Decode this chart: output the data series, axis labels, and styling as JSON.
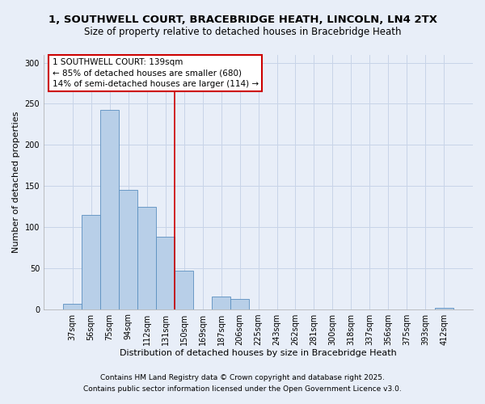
{
  "title_line1": "1, SOUTHWELL COURT, BRACEBRIDGE HEATH, LINCOLN, LN4 2TX",
  "title_line2": "Size of property relative to detached houses in Bracebridge Heath",
  "categories": [
    "37sqm",
    "56sqm",
    "75sqm",
    "94sqm",
    "112sqm",
    "131sqm",
    "150sqm",
    "169sqm",
    "187sqm",
    "206sqm",
    "225sqm",
    "243sqm",
    "262sqm",
    "281sqm",
    "300sqm",
    "318sqm",
    "337sqm",
    "356sqm",
    "375sqm",
    "393sqm",
    "412sqm"
  ],
  "values": [
    6,
    115,
    243,
    145,
    125,
    88,
    47,
    0,
    15,
    12,
    0,
    0,
    0,
    0,
    0,
    0,
    0,
    0,
    0,
    0,
    2
  ],
  "bar_color": "#b8cfe8",
  "bar_edge_color": "#5a8fc0",
  "annotation_box_text": "1 SOUTHWELL COURT: 139sqm\n← 85% of detached houses are smaller (680)\n14% of semi-detached houses are larger (114) →",
  "xlabel": "Distribution of detached houses by size in Bracebridge Heath",
  "ylabel": "Number of detached properties",
  "ylim": [
    0,
    310
  ],
  "yticks": [
    0,
    50,
    100,
    150,
    200,
    250,
    300
  ],
  "grid_color": "#c8d4e8",
  "bg_color": "#e8eef8",
  "footnote_line1": "Contains HM Land Registry data © Crown copyright and database right 2025.",
  "footnote_line2": "Contains public sector information licensed under the Open Government Licence v3.0.",
  "title_fontsize": 9.5,
  "subtitle_fontsize": 8.5,
  "axis_label_fontsize": 8,
  "tick_fontsize": 7,
  "annotation_fontsize": 7.5,
  "footnote_fontsize": 6.5,
  "vertical_line_x": 5.5,
  "vertical_line_color": "#cc0000"
}
